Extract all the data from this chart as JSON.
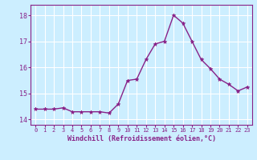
{
  "x": [
    0,
    1,
    2,
    3,
    4,
    5,
    6,
    7,
    8,
    9,
    10,
    11,
    12,
    13,
    14,
    15,
    16,
    17,
    18,
    19,
    20,
    21,
    22,
    23
  ],
  "y": [
    14.4,
    14.4,
    14.4,
    14.45,
    14.3,
    14.3,
    14.3,
    14.3,
    14.25,
    14.6,
    15.5,
    15.55,
    16.3,
    16.9,
    17.0,
    18.0,
    17.7,
    17.0,
    16.3,
    15.95,
    15.55,
    15.35,
    15.1,
    15.25
  ],
  "line_color": "#882288",
  "marker": "*",
  "marker_color": "#882288",
  "background_color": "#cceeff",
  "grid_color": "#ffffff",
  "xlabel": "Windchill (Refroidissement éolien,°C)",
  "xlabel_color": "#882288",
  "tick_color": "#882288",
  "ylim": [
    13.8,
    18.4
  ],
  "xlim": [
    -0.5,
    23.5
  ],
  "yticks": [
    14,
    15,
    16,
    17,
    18
  ],
  "xticks": [
    0,
    1,
    2,
    3,
    4,
    5,
    6,
    7,
    8,
    9,
    10,
    11,
    12,
    13,
    14,
    15,
    16,
    17,
    18,
    19,
    20,
    21,
    22,
    23
  ],
  "xlabel_fontsize": 6.0,
  "xtick_fontsize": 5.0,
  "ytick_fontsize": 6.0,
  "linewidth": 1.0,
  "markersize": 3.5
}
